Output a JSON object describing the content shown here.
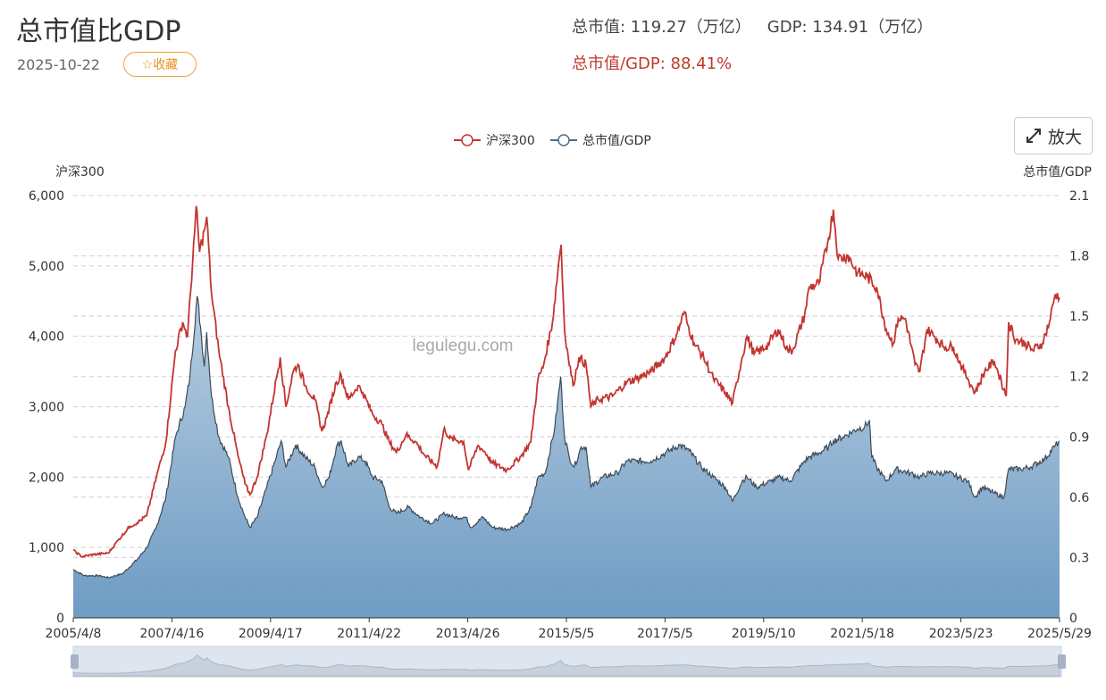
{
  "header": {
    "title": "总市值比GDP",
    "date": "2025-10-22",
    "favorite_label": "☆收藏",
    "market_cap_label": "总市值: 119.27（万亿）",
    "gdp_label": "GDP: 134.91（万亿）",
    "ratio_label": "总市值/GDP: 88.41%",
    "zoom_label": "放大"
  },
  "watermark": "legulegu.com",
  "colors": {
    "csi300": "#c23531",
    "ratio_line": "#3d4a57",
    "ratio_fill_top": "#b8cde0",
    "ratio_fill_bottom": "#6e9cc4",
    "accent": "#e8901c"
  },
  "chart_data": {
    "type": "line",
    "x_tick_labels": [
      "2005/4/8",
      "2007/4/16",
      "2009/4/17",
      "2011/4/22",
      "2013/4/26",
      "2015/5/5",
      "2017/5/5",
      "2019/5/10",
      "2021/5/18",
      "2023/5/23",
      "2025/5/29"
    ],
    "x_range": [
      2005.27,
      2025.81
    ],
    "y_left": {
      "label": "沪深300",
      "ticks": [
        "0",
        "1,000",
        "2,000",
        "3,000",
        "4,000",
        "5,000",
        "6,000"
      ],
      "range": [
        0,
        6000
      ]
    },
    "y_right": {
      "label": "总市值/GDP",
      "ticks": [
        "0",
        "0.3",
        "0.6",
        "0.9",
        "1.2",
        "1.5",
        "1.8",
        "2.1"
      ],
      "range": [
        0,
        2.1
      ]
    },
    "grid": true,
    "legend_position": "top-center",
    "series": [
      {
        "name": "沪深300",
        "axis": "left",
        "style": "line",
        "points": [
          [
            2005.27,
            960
          ],
          [
            2005.45,
            870
          ],
          [
            2005.7,
            900
          ],
          [
            2006.0,
            920
          ],
          [
            2006.2,
            1100
          ],
          [
            2006.45,
            1300
          ],
          [
            2006.6,
            1350
          ],
          [
            2006.8,
            1450
          ],
          [
            2007.0,
            2000
          ],
          [
            2007.2,
            2500
          ],
          [
            2007.4,
            3800
          ],
          [
            2007.55,
            4200
          ],
          [
            2007.65,
            4000
          ],
          [
            2007.8,
            5500
          ],
          [
            2007.83,
            5850
          ],
          [
            2007.9,
            5200
          ],
          [
            2008.0,
            5500
          ],
          [
            2008.05,
            5700
          ],
          [
            2008.15,
            4600
          ],
          [
            2008.3,
            3800
          ],
          [
            2008.5,
            3000
          ],
          [
            2008.7,
            2300
          ],
          [
            2008.85,
            1900
          ],
          [
            2008.95,
            1750
          ],
          [
            2009.1,
            2000
          ],
          [
            2009.3,
            2600
          ],
          [
            2009.5,
            3400
          ],
          [
            2009.58,
            3700
          ],
          [
            2009.7,
            3000
          ],
          [
            2009.85,
            3500
          ],
          [
            2009.95,
            3600
          ],
          [
            2010.1,
            3300
          ],
          [
            2010.3,
            3100
          ],
          [
            2010.45,
            2650
          ],
          [
            2010.55,
            2850
          ],
          [
            2010.75,
            3350
          ],
          [
            2010.85,
            3450
          ],
          [
            2011.0,
            3100
          ],
          [
            2011.2,
            3300
          ],
          [
            2011.3,
            3200
          ],
          [
            2011.5,
            2900
          ],
          [
            2011.7,
            2750
          ],
          [
            2011.85,
            2500
          ],
          [
            2012.0,
            2350
          ],
          [
            2012.2,
            2600
          ],
          [
            2012.4,
            2500
          ],
          [
            2012.6,
            2300
          ],
          [
            2012.85,
            2150
          ],
          [
            2013.0,
            2700
          ],
          [
            2013.1,
            2550
          ],
          [
            2013.4,
            2500
          ],
          [
            2013.5,
            2100
          ],
          [
            2013.7,
            2450
          ],
          [
            2013.85,
            2350
          ],
          [
            2014.0,
            2200
          ],
          [
            2014.3,
            2100
          ],
          [
            2014.6,
            2300
          ],
          [
            2014.8,
            2500
          ],
          [
            2014.95,
            3400
          ],
          [
            2015.05,
            3550
          ],
          [
            2015.25,
            4200
          ],
          [
            2015.38,
            5050
          ],
          [
            2015.43,
            5300
          ],
          [
            2015.5,
            4100
          ],
          [
            2015.58,
            3700
          ],
          [
            2015.68,
            3300
          ],
          [
            2015.8,
            3700
          ],
          [
            2015.95,
            3600
          ],
          [
            2016.05,
            3000
          ],
          [
            2016.2,
            3100
          ],
          [
            2016.5,
            3150
          ],
          [
            2016.8,
            3350
          ],
          [
            2017.0,
            3400
          ],
          [
            2017.3,
            3500
          ],
          [
            2017.6,
            3700
          ],
          [
            2017.85,
            4050
          ],
          [
            2018.0,
            4350
          ],
          [
            2018.05,
            4200
          ],
          [
            2018.2,
            3900
          ],
          [
            2018.4,
            3700
          ],
          [
            2018.6,
            3400
          ],
          [
            2018.85,
            3200
          ],
          [
            2019.0,
            3050
          ],
          [
            2019.2,
            3700
          ],
          [
            2019.3,
            4000
          ],
          [
            2019.45,
            3750
          ],
          [
            2019.7,
            3850
          ],
          [
            2019.95,
            4100
          ],
          [
            2020.15,
            3800
          ],
          [
            2020.25,
            3800
          ],
          [
            2020.5,
            4300
          ],
          [
            2020.6,
            4700
          ],
          [
            2020.8,
            4750
          ],
          [
            2021.0,
            5400
          ],
          [
            2021.1,
            5800
          ],
          [
            2021.2,
            5100
          ],
          [
            2021.4,
            5150
          ],
          [
            2021.6,
            4900
          ],
          [
            2021.8,
            4850
          ],
          [
            2022.0,
            4700
          ],
          [
            2022.2,
            4100
          ],
          [
            2022.35,
            3900
          ],
          [
            2022.45,
            4250
          ],
          [
            2022.6,
            4250
          ],
          [
            2022.8,
            3600
          ],
          [
            2022.9,
            3500
          ],
          [
            2023.05,
            4100
          ],
          [
            2023.2,
            4000
          ],
          [
            2023.4,
            3850
          ],
          [
            2023.6,
            3850
          ],
          [
            2023.75,
            3600
          ],
          [
            2023.9,
            3400
          ],
          [
            2024.05,
            3200
          ],
          [
            2024.25,
            3500
          ],
          [
            2024.45,
            3650
          ],
          [
            2024.6,
            3350
          ],
          [
            2024.7,
            3150
          ],
          [
            2024.75,
            4200
          ],
          [
            2024.9,
            3950
          ],
          [
            2025.1,
            3900
          ],
          [
            2025.25,
            3800
          ],
          [
            2025.45,
            3900
          ],
          [
            2025.6,
            4200
          ],
          [
            2025.72,
            4600
          ],
          [
            2025.81,
            4550
          ]
        ]
      },
      {
        "name": "总市值/GDP",
        "axis": "right",
        "style": "area",
        "points": [
          [
            2005.27,
            0.24
          ],
          [
            2005.5,
            0.21
          ],
          [
            2005.8,
            0.21
          ],
          [
            2006.0,
            0.2
          ],
          [
            2006.3,
            0.22
          ],
          [
            2006.6,
            0.29
          ],
          [
            2006.8,
            0.35
          ],
          [
            2007.0,
            0.45
          ],
          [
            2007.2,
            0.6
          ],
          [
            2007.4,
            0.9
          ],
          [
            2007.6,
            1.05
          ],
          [
            2007.7,
            1.2
          ],
          [
            2007.85,
            1.6
          ],
          [
            2007.92,
            1.45
          ],
          [
            2008.0,
            1.25
          ],
          [
            2008.05,
            1.42
          ],
          [
            2008.15,
            1.1
          ],
          [
            2008.3,
            0.9
          ],
          [
            2008.5,
            0.8
          ],
          [
            2008.7,
            0.6
          ],
          [
            2008.85,
            0.5
          ],
          [
            2008.95,
            0.45
          ],
          [
            2009.1,
            0.5
          ],
          [
            2009.3,
            0.65
          ],
          [
            2009.5,
            0.8
          ],
          [
            2009.6,
            0.88
          ],
          [
            2009.7,
            0.75
          ],
          [
            2009.9,
            0.86
          ],
          [
            2010.1,
            0.8
          ],
          [
            2010.3,
            0.75
          ],
          [
            2010.45,
            0.65
          ],
          [
            2010.6,
            0.7
          ],
          [
            2010.75,
            0.85
          ],
          [
            2010.85,
            0.88
          ],
          [
            2011.0,
            0.75
          ],
          [
            2011.2,
            0.8
          ],
          [
            2011.35,
            0.78
          ],
          [
            2011.5,
            0.7
          ],
          [
            2011.7,
            0.68
          ],
          [
            2011.85,
            0.55
          ],
          [
            2012.0,
            0.52
          ],
          [
            2012.25,
            0.55
          ],
          [
            2012.5,
            0.5
          ],
          [
            2012.75,
            0.47
          ],
          [
            2013.0,
            0.52
          ],
          [
            2013.2,
            0.5
          ],
          [
            2013.45,
            0.5
          ],
          [
            2013.55,
            0.45
          ],
          [
            2013.8,
            0.5
          ],
          [
            2014.0,
            0.45
          ],
          [
            2014.3,
            0.44
          ],
          [
            2014.6,
            0.47
          ],
          [
            2014.8,
            0.55
          ],
          [
            2014.95,
            0.7
          ],
          [
            2015.1,
            0.72
          ],
          [
            2015.3,
            0.95
          ],
          [
            2015.42,
            1.2
          ],
          [
            2015.5,
            0.9
          ],
          [
            2015.6,
            0.8
          ],
          [
            2015.7,
            0.75
          ],
          [
            2015.85,
            0.85
          ],
          [
            2015.95,
            0.85
          ],
          [
            2016.05,
            0.65
          ],
          [
            2016.3,
            0.7
          ],
          [
            2016.6,
            0.72
          ],
          [
            2016.8,
            0.78
          ],
          [
            2017.0,
            0.78
          ],
          [
            2017.3,
            0.78
          ],
          [
            2017.6,
            0.82
          ],
          [
            2017.9,
            0.86
          ],
          [
            2018.1,
            0.83
          ],
          [
            2018.35,
            0.75
          ],
          [
            2018.6,
            0.7
          ],
          [
            2018.85,
            0.65
          ],
          [
            2019.0,
            0.58
          ],
          [
            2019.2,
            0.68
          ],
          [
            2019.3,
            0.7
          ],
          [
            2019.5,
            0.65
          ],
          [
            2019.8,
            0.68
          ],
          [
            2020.0,
            0.7
          ],
          [
            2020.2,
            0.68
          ],
          [
            2020.5,
            0.78
          ],
          [
            2020.6,
            0.8
          ],
          [
            2020.8,
            0.82
          ],
          [
            2021.0,
            0.85
          ],
          [
            2021.1,
            0.88
          ],
          [
            2021.3,
            0.9
          ],
          [
            2021.6,
            0.94
          ],
          [
            2021.75,
            0.95
          ],
          [
            2021.85,
            0.98
          ],
          [
            2021.9,
            0.8
          ],
          [
            2022.0,
            0.75
          ],
          [
            2022.2,
            0.68
          ],
          [
            2022.4,
            0.74
          ],
          [
            2022.7,
            0.72
          ],
          [
            2022.9,
            0.7
          ],
          [
            2023.1,
            0.72
          ],
          [
            2023.3,
            0.72
          ],
          [
            2023.5,
            0.72
          ],
          [
            2023.7,
            0.7
          ],
          [
            2023.9,
            0.68
          ],
          [
            2024.05,
            0.6
          ],
          [
            2024.2,
            0.65
          ],
          [
            2024.45,
            0.62
          ],
          [
            2024.65,
            0.6
          ],
          [
            2024.75,
            0.74
          ],
          [
            2025.0,
            0.74
          ],
          [
            2025.2,
            0.75
          ],
          [
            2025.5,
            0.79
          ],
          [
            2025.7,
            0.85
          ],
          [
            2025.81,
            0.88
          ]
        ]
      }
    ]
  }
}
